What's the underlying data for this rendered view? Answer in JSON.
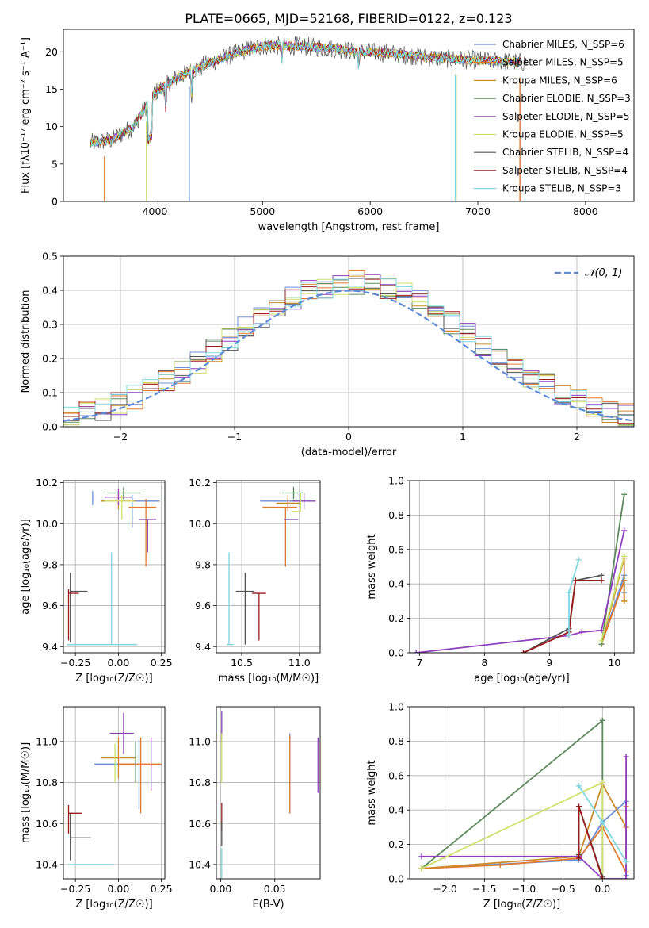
{
  "title": "PLATE=0665, MJD=52168, FIBERID=0122, z=0.123",
  "colors": [
    "#6b8fd6",
    "#e07a2e",
    "#c98a2a",
    "#5b8a5b",
    "#8e3fbf",
    "#cfe06a",
    "#555555",
    "#9b1c1c",
    "#7fd6e0"
  ],
  "chart_data": [
    {
      "id": "spectrum",
      "type": "line",
      "xlabel": "wavelength [Angstrom, rest frame]",
      "ylabel": "Flux [fλ10⁻¹⁷ erg cm⁻² s⁻¹ A⁻¹]",
      "xlim": [
        3150,
        8450
      ],
      "ylim": [
        0,
        23
      ],
      "xticks": [
        4000,
        5000,
        6000,
        7000,
        8000
      ],
      "yticks": [
        0,
        5,
        10,
        15,
        20
      ],
      "grid": false,
      "legend": "top-right",
      "series": [
        {
          "name": "Chabrier MILES, N_SSP=6"
        },
        {
          "name": "Salpeter MILES, N_SSP=5"
        },
        {
          "name": "Kroupa MILES, N_SSP=6"
        },
        {
          "name": "Chabrier ELODIE, N_SSP=3"
        },
        {
          "name": "Salpeter ELODIE, N_SSP=5"
        },
        {
          "name": "Kroupa ELODIE, N_SSP=5"
        },
        {
          "name": "Chabrier STELIB, N_SSP=4"
        },
        {
          "name": "Salpeter STELIB, N_SSP=4"
        },
        {
          "name": "Kroupa STELIB, N_SSP=3"
        }
      ],
      "continuum_x": [
        3400,
        3600,
        3800,
        4000,
        4200,
        4500,
        4800,
        5000,
        5300,
        5600,
        5900,
        6200,
        6500,
        6800,
        7100,
        7400
      ],
      "continuum_y": [
        7.8,
        8.2,
        10.0,
        14.5,
        16.5,
        18.5,
        20.0,
        20.8,
        20.8,
        20.5,
        20.0,
        19.8,
        19.3,
        19.0,
        18.8,
        18.6
      ]
    },
    {
      "id": "residuals",
      "type": "line",
      "xlabel": "(data-model)/error",
      "ylabel": "Normed distribution",
      "xlim": [
        -2.5,
        2.5
      ],
      "ylim": [
        0,
        0.5
      ],
      "xticks": [
        -2,
        -1,
        0,
        1,
        2
      ],
      "yticks": [
        0.0,
        0.1,
        0.2,
        0.3,
        0.4,
        0.5
      ],
      "grid": true,
      "legend": "top-right",
      "reference": {
        "name": "𝒩(0, 1)",
        "mean": 0,
        "sigma": 1
      }
    },
    {
      "id": "age-vs-Z",
      "type": "scatter",
      "xlabel": "Z [log₁₀(Z/Z☉)]",
      "ylabel": "age  [log₁₀(age/yr)]",
      "xlim": [
        -0.32,
        0.27
      ],
      "ylim": [
        9.37,
        10.21
      ],
      "xticks": [
        -0.25,
        0.0,
        0.25
      ],
      "yticks": [
        9.4,
        9.6,
        9.8,
        10.0,
        10.2
      ],
      "points": [
        {
          "series": 0,
          "x": 0.08,
          "y": 10.11,
          "xerr": [
            0.08,
            0.16
          ],
          "yerr": [
            0.13,
            0.03
          ]
        },
        {
          "series": 1,
          "x": 0.16,
          "y": 10.08,
          "xerr": [
            0.1,
            0.06
          ],
          "yerr": [
            0.29,
            0.04
          ]
        },
        {
          "series": 2,
          "x": 0.0,
          "y": 10.11,
          "xerr": [
            0.1,
            0.1
          ],
          "yerr": [
            0.04,
            0.04
          ]
        },
        {
          "series": 3,
          "x": 0.03,
          "y": 10.15,
          "xerr": [
            0.1,
            0.1
          ],
          "yerr": [
            0.03,
            0.03
          ]
        },
        {
          "series": 4,
          "x": 0.0,
          "y": 10.13,
          "xerr": [
            0.08,
            0.08
          ],
          "yerr": [
            0.04,
            0.04
          ]
        },
        {
          "series": 5,
          "x": 0.02,
          "y": 10.11,
          "xerr": [
            0.1,
            0.07
          ],
          "yerr": [
            0.09,
            0.03
          ]
        },
        {
          "series": 6,
          "x": -0.28,
          "y": 9.67,
          "xerr": [
            0.0,
            0.1
          ],
          "yerr": [
            0.25,
            0.09
          ]
        },
        {
          "series": 7,
          "x": -0.29,
          "y": 9.66,
          "xerr": [
            0.0,
            0.06
          ],
          "yerr": [
            0.23,
            0.02
          ]
        },
        {
          "series": 8,
          "x": -0.04,
          "y": 9.41,
          "xerr": [
            0.26,
            0.15
          ],
          "yerr": [
            0.0,
            0.45
          ]
        },
        {
          "series": 4,
          "x": 0.17,
          "y": 10.02,
          "xerr": [
            0.05,
            0.05
          ],
          "yerr": [
            0.16,
            0.0
          ]
        },
        {
          "series": 0,
          "x": -0.15,
          "y": 10.16,
          "xerr": [
            0.0,
            0.0
          ],
          "yerr": [
            0.07,
            0.0
          ]
        }
      ]
    },
    {
      "id": "age-vs-mass",
      "type": "scatter",
      "xlabel": "mass [log₁₀(M/M☉)]",
      "ylabel": "",
      "xlim": [
        10.28,
        11.18
      ],
      "ylim": [
        9.37,
        10.21
      ],
      "xticks": [
        10.5,
        11.0
      ],
      "yticks": [
        9.4,
        9.6,
        9.8,
        10.0,
        10.2
      ],
      "points": [
        {
          "series": 0,
          "x": 10.96,
          "y": 10.11,
          "xerr": [
            0.3,
            0.0
          ],
          "yerr": [
            0.0,
            0.0
          ]
        },
        {
          "series": 1,
          "x": 10.88,
          "y": 10.08,
          "xerr": [
            0.2,
            0.1
          ],
          "yerr": [
            0.29,
            0.0
          ]
        },
        {
          "series": 2,
          "x": 10.9,
          "y": 10.1,
          "xerr": [
            0.1,
            0.1
          ],
          "yerr": [
            0.04,
            0.04
          ]
        },
        {
          "series": 3,
          "x": 10.95,
          "y": 10.15,
          "xerr": [
            0.1,
            0.08
          ],
          "yerr": [
            0.03,
            0.03
          ]
        },
        {
          "series": 4,
          "x": 11.04,
          "y": 10.11,
          "xerr": [
            0.1,
            0.1
          ],
          "yerr": [
            0.04,
            0.04
          ]
        },
        {
          "series": 4,
          "x": 10.97,
          "y": 10.02,
          "xerr": [
            0.1,
            0.02
          ],
          "yerr": [
            0.0,
            0.0
          ]
        },
        {
          "series": 5,
          "x": 11.01,
          "y": 10.06,
          "xerr": [
            0.08,
            0.0
          ],
          "yerr": [
            0.0,
            0.09
          ]
        },
        {
          "series": 6,
          "x": 10.53,
          "y": 9.67,
          "xerr": [
            0.08,
            0.08
          ],
          "yerr": [
            0.26,
            0.09
          ]
        },
        {
          "series": 7,
          "x": 10.65,
          "y": 9.66,
          "xerr": [
            0.06,
            0.06
          ],
          "yerr": [
            0.23,
            0.0
          ]
        },
        {
          "series": 8,
          "x": 10.39,
          "y": 9.41,
          "xerr": [
            0.02,
            0.04
          ],
          "yerr": [
            0.0,
            0.45
          ]
        }
      ]
    },
    {
      "id": "weight-vs-age",
      "type": "line",
      "xlabel": "age  [log₁₀(age/yr)]",
      "ylabel": "mass weight",
      "xlim": [
        6.85,
        10.3
      ],
      "ylim": [
        0,
        1
      ],
      "xticks": [
        7,
        8,
        9,
        10
      ],
      "yticks": [
        0.0,
        0.2,
        0.4,
        0.6,
        0.8,
        1.0
      ],
      "grid": true,
      "series": [
        {
          "series": 0,
          "x": [
            9.8,
            10.15,
            10.15
          ],
          "y": [
            0.05,
            0.45,
            0.35
          ]
        },
        {
          "series": 1,
          "x": [
            9.8,
            10.15,
            10.15
          ],
          "y": [
            0.05,
            0.42,
            0.3
          ]
        },
        {
          "series": 2,
          "x": [
            9.8,
            10.15,
            10.15
          ],
          "y": [
            0.05,
            0.55,
            0.3
          ]
        },
        {
          "series": 3,
          "x": [
            9.8,
            10.15
          ],
          "y": [
            0.05,
            0.92
          ]
        },
        {
          "series": 4,
          "x": [
            6.95,
            9.3,
            9.5,
            9.8,
            10.15
          ],
          "y": [
            0.0,
            0.1,
            0.12,
            0.13,
            0.71
          ]
        },
        {
          "series": 5,
          "x": [
            9.8,
            10.15
          ],
          "y": [
            0.07,
            0.56
          ]
        },
        {
          "series": 6,
          "x": [
            8.6,
            9.3,
            9.4,
            9.8
          ],
          "y": [
            0.0,
            0.14,
            0.42,
            0.45
          ]
        },
        {
          "series": 7,
          "x": [
            8.6,
            9.3,
            9.4,
            9.8
          ],
          "y": [
            0.0,
            0.12,
            0.42,
            0.42
          ]
        },
        {
          "series": 8,
          "x": [
            9.3,
            9.3,
            9.45
          ],
          "y": [
            0.1,
            0.35,
            0.54
          ]
        }
      ]
    },
    {
      "id": "mass-vs-Z",
      "type": "scatter",
      "xlabel": "Z [log₁₀(Z/Z☉)]",
      "ylabel": "mass [log₁₀(M/M☉)]",
      "xlim": [
        -0.32,
        0.27
      ],
      "ylim": [
        10.33,
        11.17
      ],
      "xticks": [
        -0.25,
        0.0,
        0.25
      ],
      "yticks": [
        10.4,
        10.6,
        10.8,
        11.0
      ],
      "points": [
        {
          "series": 0,
          "x": 0.12,
          "y": 10.89,
          "xerr": [
            0.26,
            0.0
          ],
          "yerr": [
            0.22,
            0.12
          ]
        },
        {
          "series": 1,
          "x": 0.13,
          "y": 10.89,
          "xerr": [
            0.13,
            0.12
          ],
          "yerr": [
            0.24,
            0.13
          ]
        },
        {
          "series": 2,
          "x": 0.0,
          "y": 10.92,
          "xerr": [
            0.1,
            0.1
          ],
          "yerr": [
            0.1,
            0.1
          ]
        },
        {
          "series": 3,
          "x": 0.1,
          "y": 11.0,
          "xerr": [
            0.0,
            0.0
          ],
          "yerr": [
            0.2,
            0.0
          ]
        },
        {
          "series": 4,
          "x": 0.03,
          "y": 11.04,
          "xerr": [
            0.08,
            0.06
          ],
          "yerr": [
            0.1,
            0.1
          ]
        },
        {
          "series": 5,
          "x": -0.02,
          "y": 10.99,
          "xerr": [
            0.0,
            0.0
          ],
          "yerr": [
            0.19,
            0.0
          ]
        },
        {
          "series": 6,
          "x": -0.28,
          "y": 10.53,
          "xerr": [
            0.0,
            0.12
          ],
          "yerr": [
            0.11,
            0.12
          ]
        },
        {
          "series": 7,
          "x": -0.29,
          "y": 10.65,
          "xerr": [
            0.0,
            0.08
          ],
          "yerr": [
            0.1,
            0.04
          ]
        },
        {
          "series": 8,
          "x": -0.29,
          "y": 10.4,
          "xerr": [
            0.0,
            0.26
          ],
          "yerr": [
            0.0,
            0.0
          ]
        },
        {
          "series": 4,
          "x": 0.19,
          "y": 10.9,
          "xerr": [
            0.0,
            0.0
          ],
          "yerr": [
            0.14,
            0.12
          ]
        }
      ]
    },
    {
      "id": "mass-vs-EBV",
      "type": "scatter",
      "xlabel": "E(B-V)",
      "ylabel": "",
      "xlim": [
        -0.004,
        0.092
      ],
      "ylim": [
        10.33,
        11.17
      ],
      "xticks": [
        0.0,
        0.05
      ],
      "yticks": [
        10.4,
        10.6,
        10.8,
        11.0
      ],
      "points": [
        {
          "series": 0,
          "x": 0.064,
          "y": 10.85,
          "xerr": [
            0,
            0
          ],
          "yerr": [
            0.2,
            0.19
          ]
        },
        {
          "series": 1,
          "x": 0.064,
          "y": 10.85,
          "xerr": [
            0,
            0
          ],
          "yerr": [
            0.2,
            0.18
          ]
        },
        {
          "series": 4,
          "x": 0.09,
          "y": 10.88,
          "xerr": [
            0,
            0
          ],
          "yerr": [
            0.13,
            0.14
          ]
        },
        {
          "series": 4,
          "x": 0.001,
          "y": 11.08,
          "xerr": [
            0,
            0
          ],
          "yerr": [
            0.08,
            0.07
          ]
        },
        {
          "series": 5,
          "x": 0.001,
          "y": 10.92,
          "xerr": [
            0,
            0
          ],
          "yerr": [
            0.12,
            0.12
          ]
        },
        {
          "series": 7,
          "x": 0.001,
          "y": 10.63,
          "xerr": [
            0,
            0
          ],
          "yerr": [
            0.07,
            0.07
          ]
        },
        {
          "series": 8,
          "x": 0.001,
          "y": 10.4,
          "xerr": [
            0,
            0
          ],
          "yerr": [
            0.07,
            0.08
          ]
        },
        {
          "series": 6,
          "x": 0.001,
          "y": 10.55,
          "xerr": [
            0,
            0
          ],
          "yerr": [
            0.06,
            0.06
          ]
        }
      ]
    },
    {
      "id": "weight-vs-Z",
      "type": "line",
      "xlabel": "Z [log₁₀(Z/Z☉)]",
      "ylabel": "mass weight",
      "xlim": [
        -2.45,
        0.4
      ],
      "ylim": [
        0,
        1
      ],
      "xticks": [
        -2.0,
        -1.5,
        -1.0,
        -0.5,
        0.0
      ],
      "yticks": [
        0.0,
        0.2,
        0.4,
        0.6,
        0.8,
        1.0
      ],
      "grid": true,
      "series": [
        {
          "series": 0,
          "x": [
            -2.3,
            -0.3,
            0.0,
            0.3,
            0.3
          ],
          "y": [
            0.06,
            0.11,
            0.33,
            0.45,
            0.02
          ]
        },
        {
          "series": 1,
          "x": [
            -2.3,
            -1.3,
            -0.3,
            0.0,
            0.3,
            0.3
          ],
          "y": [
            0.06,
            0.08,
            0.12,
            0.3,
            0.04,
            0.42
          ]
        },
        {
          "series": 2,
          "x": [
            -2.3,
            -0.3,
            0.0,
            0.3
          ],
          "y": [
            0.06,
            0.13,
            0.55,
            0.3
          ]
        },
        {
          "series": 3,
          "x": [
            -2.3,
            0.0,
            0.0
          ],
          "y": [
            0.06,
            0.92,
            0.0
          ]
        },
        {
          "series": 4,
          "x": [
            -2.3,
            -0.3,
            0.0,
            0.3,
            0.3
          ],
          "y": [
            0.13,
            0.13,
            0.0,
            0.0,
            0.71
          ]
        },
        {
          "series": 5,
          "x": [
            -2.3,
            0.0,
            0.0
          ],
          "y": [
            0.06,
            0.56,
            0.0
          ]
        },
        {
          "series": 6,
          "x": [
            -0.3,
            -0.3,
            0.0
          ],
          "y": [
            0.14,
            0.42,
            0.01
          ]
        },
        {
          "series": 7,
          "x": [
            -0.3,
            -0.3,
            0.0
          ],
          "y": [
            0.12,
            0.42,
            0.0
          ]
        },
        {
          "series": 8,
          "x": [
            -0.3,
            0.0,
            0.3
          ],
          "y": [
            0.54,
            0.33,
            0.1
          ]
        }
      ]
    }
  ]
}
